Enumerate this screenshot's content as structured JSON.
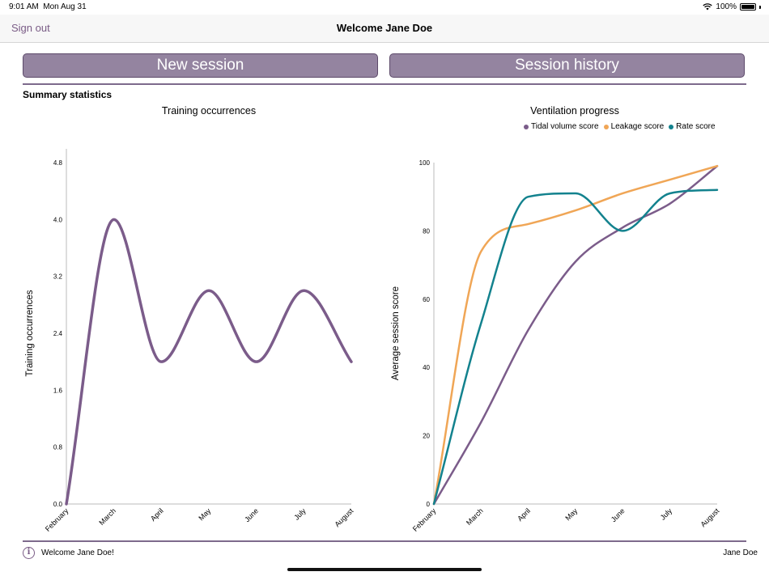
{
  "status": {
    "time": "9:01 AM",
    "date": "Mon Aug 31",
    "battery": "100%"
  },
  "nav": {
    "sign_out": "Sign out",
    "title": "Welcome Jane Doe"
  },
  "buttons": {
    "new_session": "New session",
    "session_history": "Session history"
  },
  "summary": {
    "title": "Summary statistics"
  },
  "chart_data": [
    {
      "type": "line",
      "title": "Training occurrences",
      "ylabel": "Training occurrences",
      "xlabel": "",
      "categories": [
        "February",
        "March",
        "April",
        "May",
        "June",
        "July",
        "August"
      ],
      "yticks": [
        "0.0",
        "0.8",
        "1.6",
        "2.4",
        "3.2",
        "4.0",
        "4.8"
      ],
      "ylim": [
        0,
        4.8
      ],
      "series": [
        {
          "values": [
            0,
            4,
            2,
            3,
            2,
            3,
            2
          ],
          "color": "#7b5c8a"
        }
      ]
    },
    {
      "type": "line",
      "title": "Ventilation progress",
      "ylabel": "Average session score",
      "xlabel": "",
      "categories": [
        "February",
        "March",
        "April",
        "May",
        "June",
        "July",
        "August"
      ],
      "yticks": [
        "0",
        "20",
        "40",
        "60",
        "80",
        "100"
      ],
      "ylim": [
        0,
        100
      ],
      "legend": "top",
      "series": [
        {
          "name": "Tidal volume score",
          "values": [
            0,
            24,
            51,
            71,
            81,
            88,
            99
          ],
          "color": "#7b5c8a"
        },
        {
          "name": "Leakage score",
          "values": [
            0,
            74,
            82,
            86,
            91,
            95,
            99
          ],
          "color": "#f0a656"
        },
        {
          "name": "Rate score",
          "values": [
            0,
            53,
            90,
            91,
            80,
            91,
            92
          ],
          "color": "#13828e"
        }
      ]
    }
  ],
  "footer": {
    "message": "Welcome Jane Doe!",
    "user": "Jane Doe"
  },
  "icons": {
    "info": "info-icon",
    "wifi": "wifi-icon",
    "battery": "battery-icon"
  },
  "colors": {
    "accent": "#7a5c86",
    "button": "#9484a0"
  }
}
